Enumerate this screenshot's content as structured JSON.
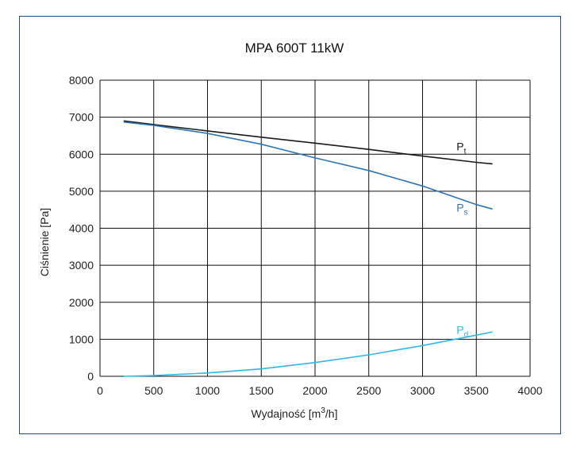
{
  "chart_data": {
    "type": "line",
    "title": "MPA 600T 11kW",
    "xlabel": "Wydajność [m³/h]",
    "xlabel_parts": {
      "main": "Wydajność [m",
      "sup": "3",
      "tail": "/h]"
    },
    "ylabel": "Ciśnienie [Pa]",
    "xlim": [
      0,
      4000
    ],
    "ylim": [
      0,
      8000
    ],
    "xticks": [
      0,
      500,
      1000,
      1500,
      2000,
      2500,
      3000,
      3500,
      4000
    ],
    "yticks": [
      0,
      1000,
      2000,
      3000,
      4000,
      5000,
      6000,
      7000,
      8000
    ],
    "grid": true,
    "series": [
      {
        "name": "Pt",
        "label_main": "P",
        "label_sub": "t",
        "color": "#1a1a1a",
        "x": [
          220,
          500,
          1000,
          1500,
          2000,
          2500,
          3000,
          3500,
          3650
        ],
        "y": [
          6900,
          6800,
          6630,
          6460,
          6300,
          6130,
          5950,
          5780,
          5740
        ]
      },
      {
        "name": "Ps",
        "label_main": "P",
        "label_sub": "s",
        "color": "#2e75b6",
        "x": [
          220,
          500,
          1000,
          1500,
          2000,
          2500,
          3000,
          3500,
          3650
        ],
        "y": [
          6870,
          6780,
          6560,
          6270,
          5900,
          5560,
          5140,
          4640,
          4520
        ]
      },
      {
        "name": "Pd",
        "label_main": "P",
        "label_sub": "d",
        "color": "#2eb8e6",
        "x": [
          220,
          500,
          1000,
          1500,
          2000,
          2500,
          3000,
          3500,
          3650
        ],
        "y": [
          0,
          20,
          90,
          200,
          370,
          580,
          830,
          1110,
          1200
        ]
      }
    ],
    "legend": "inline-right"
  }
}
